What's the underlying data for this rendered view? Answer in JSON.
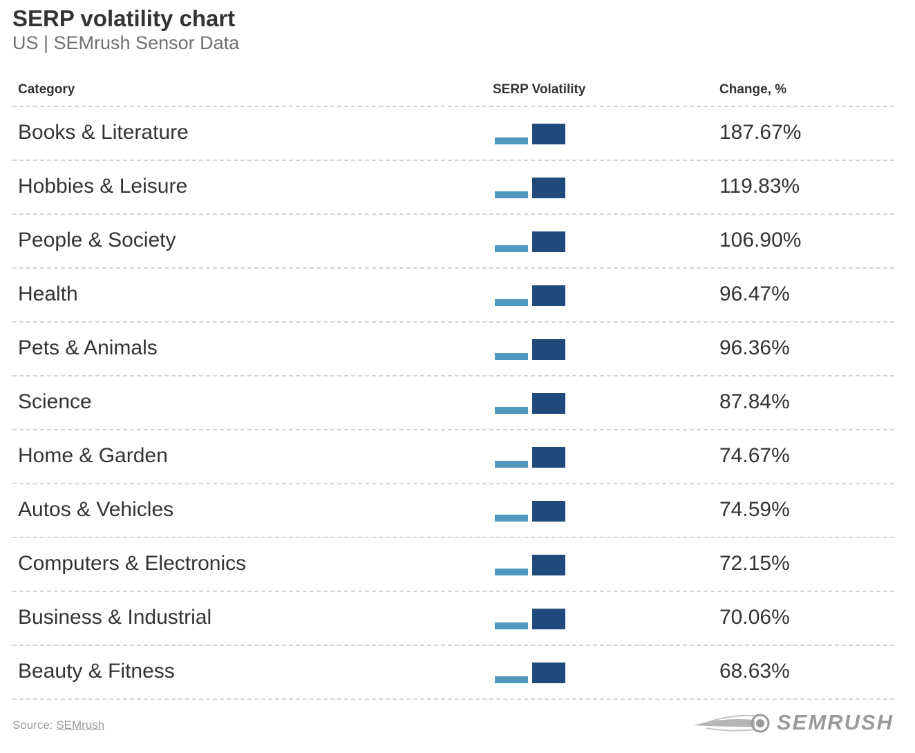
{
  "title": "SERP volatility chart",
  "subtitle": "US | SEMrush Sensor Data",
  "source_label": "Source:",
  "source_link": "SEMrush",
  "logo_text": "SEMRUSH",
  "colors": {
    "bar_light": "#4f99be",
    "bar_dark": "#204a7c",
    "text": "#333333",
    "muted": "#707070",
    "divider": "#d4d4d4"
  },
  "chart_data": {
    "type": "table",
    "columns": [
      "Category",
      "SERP Volatility",
      "Change, %"
    ],
    "rows": [
      {
        "category": "Books & Literature",
        "change": "187.67%",
        "change_value": 187.67
      },
      {
        "category": "Hobbies & Leisure",
        "change": "119.83%",
        "change_value": 119.83
      },
      {
        "category": "People & Society",
        "change": "106.90%",
        "change_value": 106.9
      },
      {
        "category": "Health",
        "change": "96.47%",
        "change_value": 96.47
      },
      {
        "category": "Pets & Animals",
        "change": "96.36%",
        "change_value": 96.36
      },
      {
        "category": "Science",
        "change": "87.84%",
        "change_value": 87.84
      },
      {
        "category": "Home & Garden",
        "change": "74.67%",
        "change_value": 74.67
      },
      {
        "category": "Autos & Vehicles",
        "change": "74.59%",
        "change_value": 74.59
      },
      {
        "category": "Computers & Electronics",
        "change": "72.15%",
        "change_value": 72.15
      },
      {
        "category": "Business & Industrial",
        "change": "70.06%",
        "change_value": 70.06
      },
      {
        "category": "Beauty & Fitness",
        "change": "68.63%",
        "change_value": 68.63
      }
    ]
  }
}
